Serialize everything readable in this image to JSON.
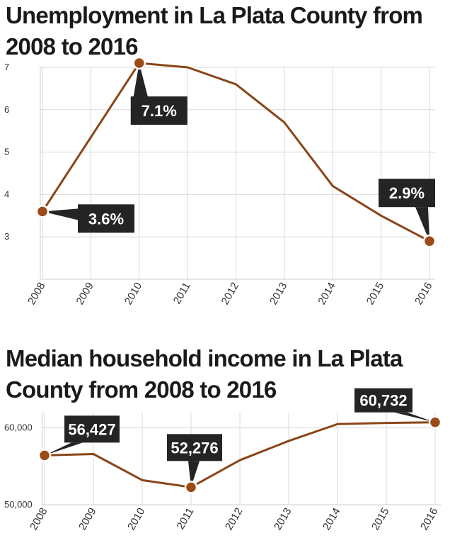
{
  "chart_data": [
    {
      "type": "line",
      "title": "Unemployment in La Plata County from 2008 to 2016",
      "categories": [
        "2008",
        "2009",
        "2010",
        "2011",
        "2012",
        "2013",
        "2014",
        "2015",
        "2016"
      ],
      "values": [
        3.6,
        5.35,
        7.1,
        7.0,
        6.6,
        5.7,
        4.2,
        3.5,
        2.9
      ],
      "ylim": [
        2,
        7
      ],
      "yticks": [
        "3",
        "4",
        "5",
        "6",
        "7"
      ],
      "ytick_values": [
        3,
        4,
        5,
        6,
        7
      ],
      "xlabel": "",
      "ylabel": "",
      "grid": true,
      "color": "#8a4519",
      "annotations": [
        {
          "index": 0,
          "text": "3.6%"
        },
        {
          "index": 2,
          "text": "7.1%"
        },
        {
          "index": 8,
          "text": "2.9%"
        }
      ]
    },
    {
      "type": "line",
      "title": "Median household income in La Plata County from 2008 to 2016",
      "categories": [
        "2008",
        "2009",
        "2010",
        "2011",
        "2012",
        "2013",
        "2014",
        "2015",
        "2016"
      ],
      "values": [
        56427,
        56600,
        53200,
        52276,
        55800,
        58300,
        60500,
        60650,
        60732
      ],
      "ylim": [
        50000,
        62000
      ],
      "yticks": [
        "60,000",
        "50,000"
      ],
      "ytick_values": [
        60000,
        50000
      ],
      "xlabel": "",
      "ylabel": "",
      "grid": true,
      "color": "#8a4519",
      "annotations": [
        {
          "index": 0,
          "text": "56,427"
        },
        {
          "index": 3,
          "text": "52,276"
        },
        {
          "index": 8,
          "text": "60,732"
        }
      ]
    }
  ]
}
